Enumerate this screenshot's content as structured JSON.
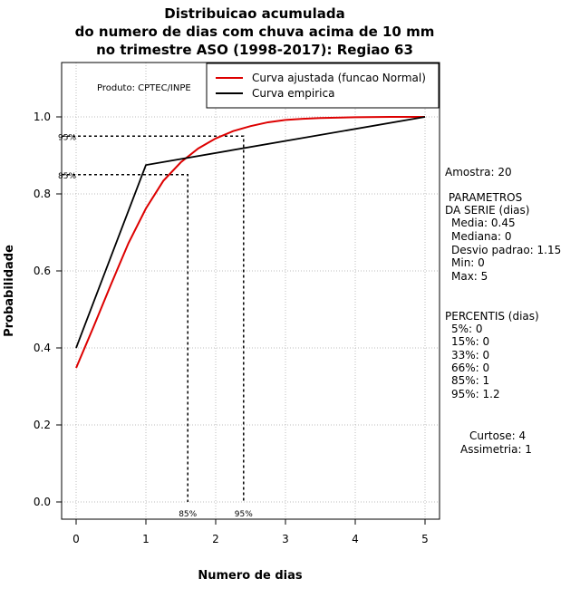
{
  "chart_data": {
    "type": "line",
    "title": [
      "Distribuicao acumulada",
      "do numero de dias com chuva acima de 10 mm",
      "no trimestre ASO (1998-2017): Regiao 63"
    ],
    "xlabel": "Numero de dias",
    "ylabel": "Probabilidade",
    "xlim": [
      -0.2,
      5.2
    ],
    "ylim": [
      -0.04,
      1.14
    ],
    "x_ticks": [
      0,
      1,
      2,
      3,
      4,
      5
    ],
    "y_ticks": [
      0.0,
      0.2,
      0.4,
      0.6,
      0.8,
      1.0
    ],
    "y_tick_labels": [
      "0.0",
      "0.2",
      "0.4",
      "0.6",
      "0.8",
      "1.0"
    ],
    "grid": true,
    "legend_position": "top-right",
    "product_label": "Produto: CPTEC/INPE",
    "series": [
      {
        "name": "Curva ajustada (funcao Normal)",
        "color": "#dd0000",
        "x": [
          0,
          0.25,
          0.5,
          0.75,
          1,
          1.25,
          1.5,
          1.75,
          2,
          2.25,
          2.5,
          2.75,
          3,
          3.25,
          3.5,
          4,
          4.5,
          5
        ],
        "y": [
          0.348,
          0.455,
          0.565,
          0.672,
          0.762,
          0.834,
          0.882,
          0.918,
          0.944,
          0.963,
          0.976,
          0.986,
          0.992,
          0.995,
          0.997,
          0.999,
          1.0,
          1.0
        ]
      },
      {
        "name": "Curva empirica",
        "color": "#000000",
        "x": [
          0,
          1,
          5
        ],
        "y": [
          0.4,
          0.875,
          1.0
        ]
      }
    ],
    "reference_lines": [
      {
        "label": "85%",
        "x": 1.6,
        "y": 0.85
      },
      {
        "label": "95%",
        "x": 2.4,
        "y": 0.95
      }
    ]
  },
  "sidebar": {
    "amostra": "Amostra: 20",
    "parametros_title": " PARAMETROS\nDA SERIE (dias)",
    "parametros": [
      "Media: 0.45",
      "Mediana: 0",
      "Desvio padrao: 1.15",
      "Min: 0",
      "Max: 5"
    ],
    "percentis_title": "PERCENTIS (dias)",
    "percentis": [
      "5%: 0",
      "15%: 0",
      "33%: 0",
      "66%: 0",
      "85%: 1",
      "95%: 1.2"
    ],
    "curtose": "Curtose: 4",
    "assimetria": "Assimetria: 1"
  }
}
